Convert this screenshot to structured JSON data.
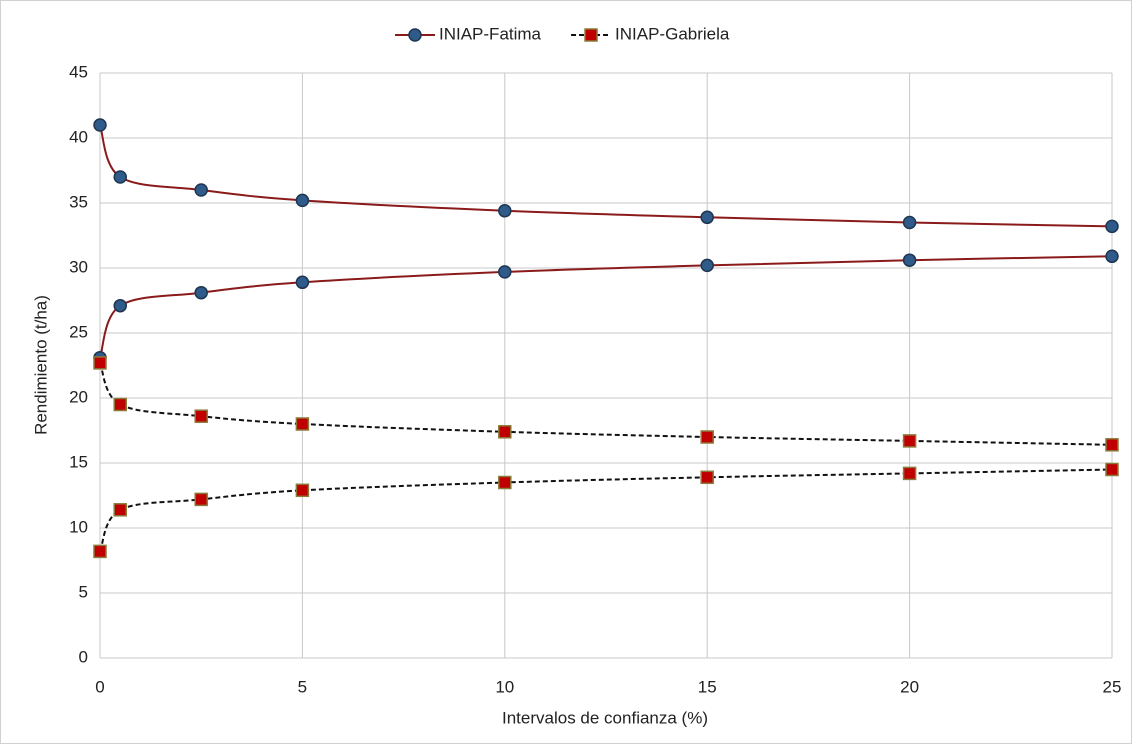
{
  "chart_data": {
    "type": "line",
    "xlabel": "Intervalos de confianza (%)",
    "ylabel": "Rendimiento (t/ha)",
    "x": [
      0,
      0.5,
      2.5,
      5,
      10,
      15,
      20,
      25
    ],
    "series": [
      {
        "name": "INIAP-Fatima",
        "color": "#8b1a1a",
        "marker": "circle",
        "marker_color": "#2e5b8a",
        "marker_edge": "#1f3550",
        "dashed": false,
        "upper": [
          41,
          37,
          36,
          35.2,
          34.4,
          33.9,
          33.5,
          33.2
        ],
        "lower": [
          23.1,
          27.1,
          28.1,
          28.9,
          29.7,
          30.2,
          30.6,
          30.9
        ]
      },
      {
        "name": "INIAP-Gabriela",
        "color": "#111111",
        "marker": "square",
        "marker_color": "#c00000",
        "marker_edge": "#8a7a3a",
        "dashed": true,
        "upper": [
          22.7,
          19.5,
          18.6,
          18.0,
          17.4,
          17.0,
          16.7,
          16.4
        ],
        "lower": [
          8.2,
          11.4,
          12.2,
          12.9,
          13.5,
          13.9,
          14.2,
          14.5
        ]
      }
    ],
    "xlim": [
      0,
      25
    ],
    "xticks": [
      0,
      5,
      10,
      15,
      20,
      25
    ],
    "ylim": [
      0,
      45
    ],
    "yticks": [
      0,
      5,
      10,
      15,
      20,
      25,
      30,
      35,
      40,
      45
    ],
    "grid": true,
    "legend": "top"
  }
}
